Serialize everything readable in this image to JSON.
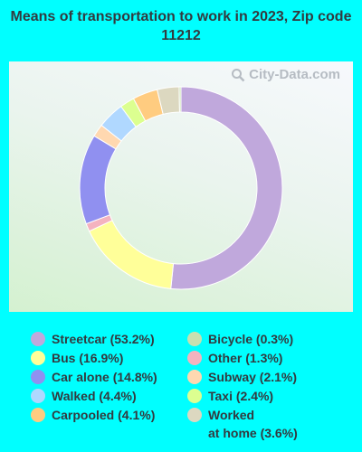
{
  "title": "Means of transportation to work in 2023, Zip code 11212",
  "watermark": "City-Data.com",
  "chart_data": {
    "type": "pie",
    "variant": "donut",
    "series": [
      {
        "label": "Streetcar (53.2%)",
        "value": 53.2,
        "color": "#c0a8dc"
      },
      {
        "label": "Bus (16.9%)",
        "value": 16.9,
        "color": "#ffff99"
      },
      {
        "label": "Other (1.3%)",
        "value": 1.3,
        "color": "#f4b3bf"
      },
      {
        "label": "Car alone (14.8%)",
        "value": 14.8,
        "color": "#9090f0"
      },
      {
        "label": "Subway (2.1%)",
        "value": 2.1,
        "color": "#ffd8b0"
      },
      {
        "label": "Walked (4.4%)",
        "value": 4.4,
        "color": "#b0d8ff"
      },
      {
        "label": "Taxi (2.4%)",
        "value": 2.4,
        "color": "#dcff90"
      },
      {
        "label": "Carpooled (4.1%)",
        "value": 4.1,
        "color": "#ffcc80"
      },
      {
        "label": "Worked\nat home (3.6%)",
        "value": 3.6,
        "color": "#dcd8c0"
      },
      {
        "label": "Bicycle (0.3%)",
        "value": 0.3,
        "color": "#c8e0b0"
      }
    ]
  },
  "legend_order": [
    "Streetcar (53.2%)",
    "Bus (16.9%)",
    "Car alone (14.8%)",
    "Walked (4.4%)",
    "Carpooled (4.1%)",
    "Bicycle (0.3%)",
    "Other (1.3%)",
    "Subway (2.1%)",
    "Taxi (2.4%)",
    "Worked\nat home (3.6%)"
  ]
}
